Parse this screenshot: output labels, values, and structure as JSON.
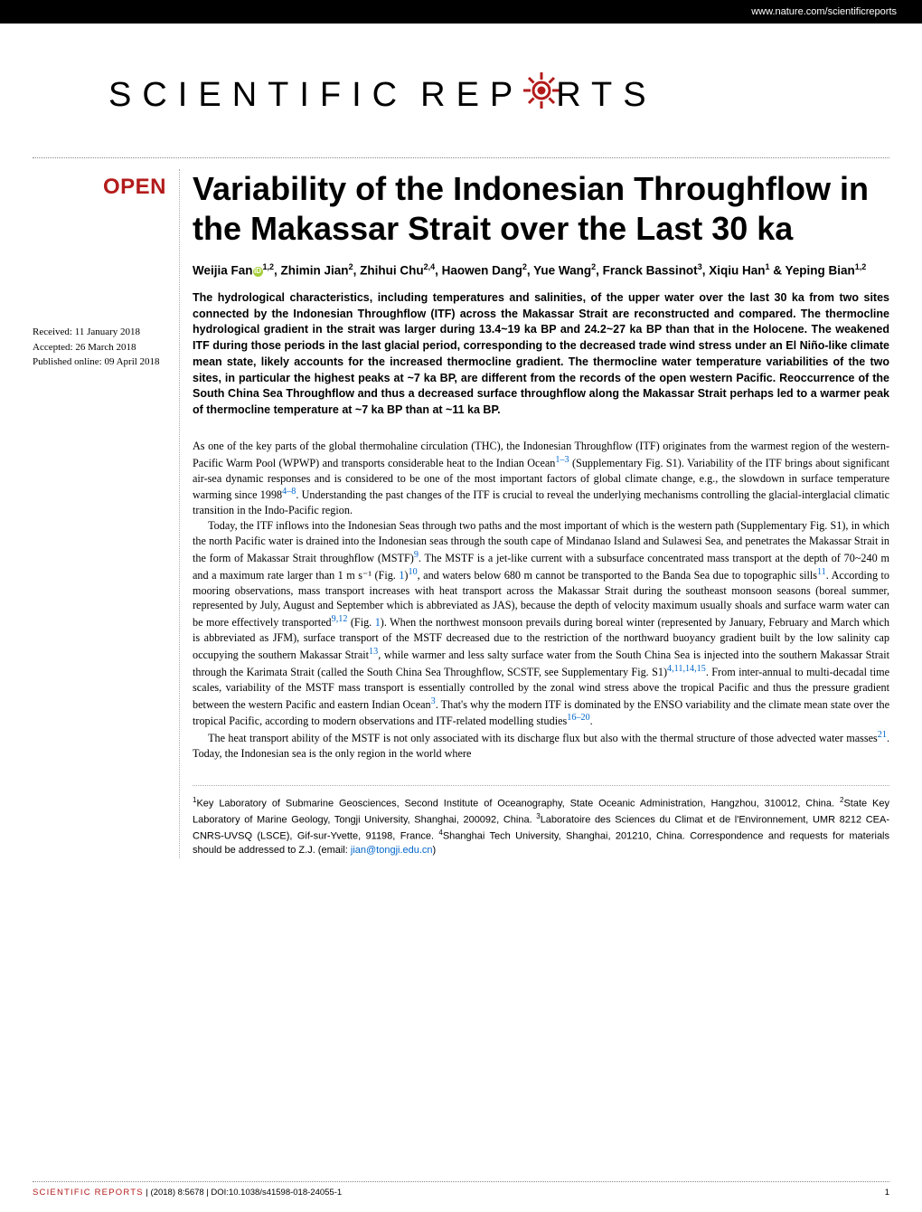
{
  "header": {
    "url": "www.nature.com/scientificreports"
  },
  "journal": {
    "name_part1": "SCIENTIFIC",
    "name_part2": "REP",
    "name_part3": "RTS",
    "gear_color": "#b31b1b"
  },
  "open_label": "OPEN",
  "article": {
    "title": "Variability of the Indonesian Throughflow in the Makassar Strait over the Last 30 ka"
  },
  "meta": {
    "received": "Received: 11 January 2018",
    "accepted": "Accepted: 26 March 2018",
    "published": "Published online: 09 April 2018"
  },
  "authors_html": "Weijia Fan|ORCID|^1,2^, Zhimin Jian^2^, Zhihui Chu^2,4^, Haowen Dang^2^, Yue Wang^2^, Franck Bassinot^3^, Xiqiu Han^1^ & Yeping Bian^1,2^",
  "abstract": "The hydrological characteristics, including temperatures and salinities, of the upper water over the last 30 ka from two sites connected by the Indonesian Throughflow (ITF) across the Makassar Strait are reconstructed and compared. The thermocline hydrological gradient in the strait was larger during 13.4~19 ka BP and 24.2~27 ka BP than that in the Holocene. The weakened ITF during those periods in the last glacial period, corresponding to the decreased trade wind stress under an El Niño-like climate mean state, likely accounts for the increased thermocline gradient. The thermocline water temperature variabilities of the two sites, in particular the highest peaks at ~7 ka BP, are different from the records of the open western Pacific. Reoccurrence of the South China Sea Throughflow and thus a decreased surface throughflow along the Makassar Strait perhaps led to a warmer peak of thermocline temperature at ~7 ka BP than at ~11 ka BP.",
  "body": {
    "p1": "As one of the key parts of the global thermohaline circulation (THC), the Indonesian Throughflow (ITF) originates from the warmest region of the western-Pacific Warm Pool (WPWP) and transports considerable heat to the Indian Ocean|ref:1–3| (Supplementary Fig. S1). Variability of the ITF brings about significant air-sea dynamic responses and is considered to be one of the most important factors of global climate change, e.g., the slowdown in surface temperature warming since 1998|ref:4–8|. Understanding the past changes of the ITF is crucial to reveal the underlying mechanisms controlling the glacial-interglacial climatic transition in the Indo-Pacific region.",
    "p2": "Today, the ITF inflows into the Indonesian Seas through two paths and the most important of which is the western path (Supplementary Fig. S1), in which the north Pacific water is drained into the Indonesian seas through the south cape of Mindanao Island and Sulawesi Sea, and penetrates the Makassar Strait in the form of Makassar Strait throughflow (MSTF)|ref:9|. The MSTF is a jet-like current with a subsurface concentrated mass transport at the depth of 70~240 m and a maximum rate larger than 1 m s⁻¹ (Fig. |fig:1|)|ref:10|, and waters below 680 m cannot be transported to the Banda Sea due to topographic sills|ref:11|. According to mooring observations, mass transport increases with heat transport across the Makassar Strait during the southeast monsoon seasons (boreal summer, represented by July, August and September which is abbreviated as JAS), because the depth of velocity maximum usually shoals and surface warm water can be more effectively transported|ref:9,12| (Fig. |fig:1|). When the northwest monsoon prevails during boreal winter (represented by January, February and March which is abbreviated as JFM), surface transport of the MSTF decreased due to the restriction of the northward buoyancy gradient built by the low salinity cap occupying the southern Makassar Strait|ref:13|, while warmer and less salty surface water from the South China Sea is injected into the southern Makassar Strait through the Karimata Strait (called the South China Sea Throughflow, SCSTF, see Supplementary Fig. S1)|ref:4,11,14,15|. From inter-annual to multi-decadal time scales, variability of the MSTF mass transport is essentially controlled by the zonal wind stress above the tropical Pacific and thus the pressure gradient between the western Pacific and eastern Indian Ocean|ref:3|. That's why the modern ITF is dominated by the ENSO variability and the climate mean state over the tropical Pacific, according to modern observations and ITF-related modelling studies|ref:16–20|.",
    "p3": "The heat transport ability of the MSTF is not only associated with its discharge flux but also with the thermal structure of those advected water masses|ref:21|. Today, the Indonesian sea is the only region in the world where"
  },
  "affiliations": "^1^Key Laboratory of Submarine Geosciences, Second Institute of Oceanography, State Oceanic Administration, Hangzhou, 310012, China. ^2^State Key Laboratory of Marine Geology, Tongji University, Shanghai, 200092, China. ^3^Laboratoire des Sciences du Climat et de l'Environnement, UMR 8212 CEA-CNRS-UVSQ (LSCE), Gif-sur-Yvette, 91198, France. ^4^Shanghai Tech University, Shanghai, 201210, China. Correspondence and requests for materials should be addressed to Z.J. (email: |email:jian@tongji.edu.cn|)",
  "footer": {
    "journal": "SCIENTIFIC REPORTS",
    "citation": " | (2018) 8:5678 | DOI:10.1038/s41598-018-24055-1",
    "page": "1"
  },
  "colors": {
    "accent": "#b31b1b",
    "link": "#0066cc",
    "text": "#000000",
    "bg": "#ffffff"
  }
}
